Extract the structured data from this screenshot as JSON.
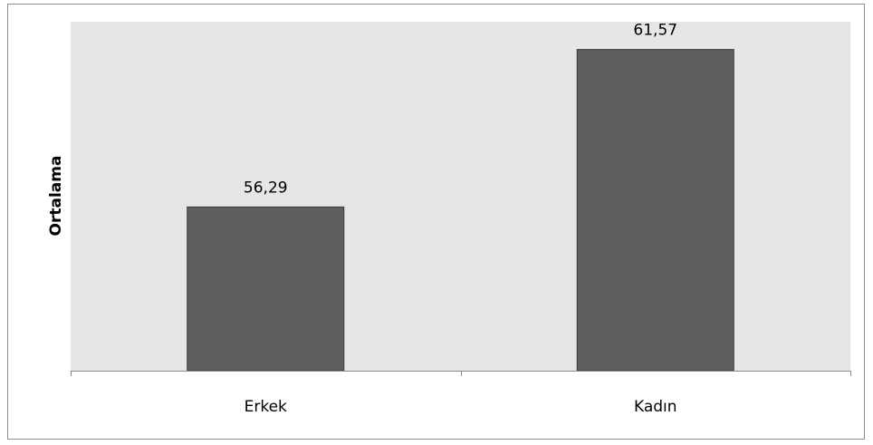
{
  "chart_data": {
    "type": "bar",
    "categories": [
      "Erkek",
      "Kadın"
    ],
    "values": [
      56.29,
      61.57
    ],
    "value_labels": [
      "56,29",
      "61,57"
    ],
    "ylabel": "Ortalama",
    "ylim": [
      50.8,
      62.5
    ],
    "grid": false,
    "legend": "none"
  },
  "colors": {
    "plot_background": "#e6e6e6",
    "bar_fill": "#5f5f5f",
    "bar_stroke": "#3a3a3a",
    "axis": "#8c8c8c"
  }
}
